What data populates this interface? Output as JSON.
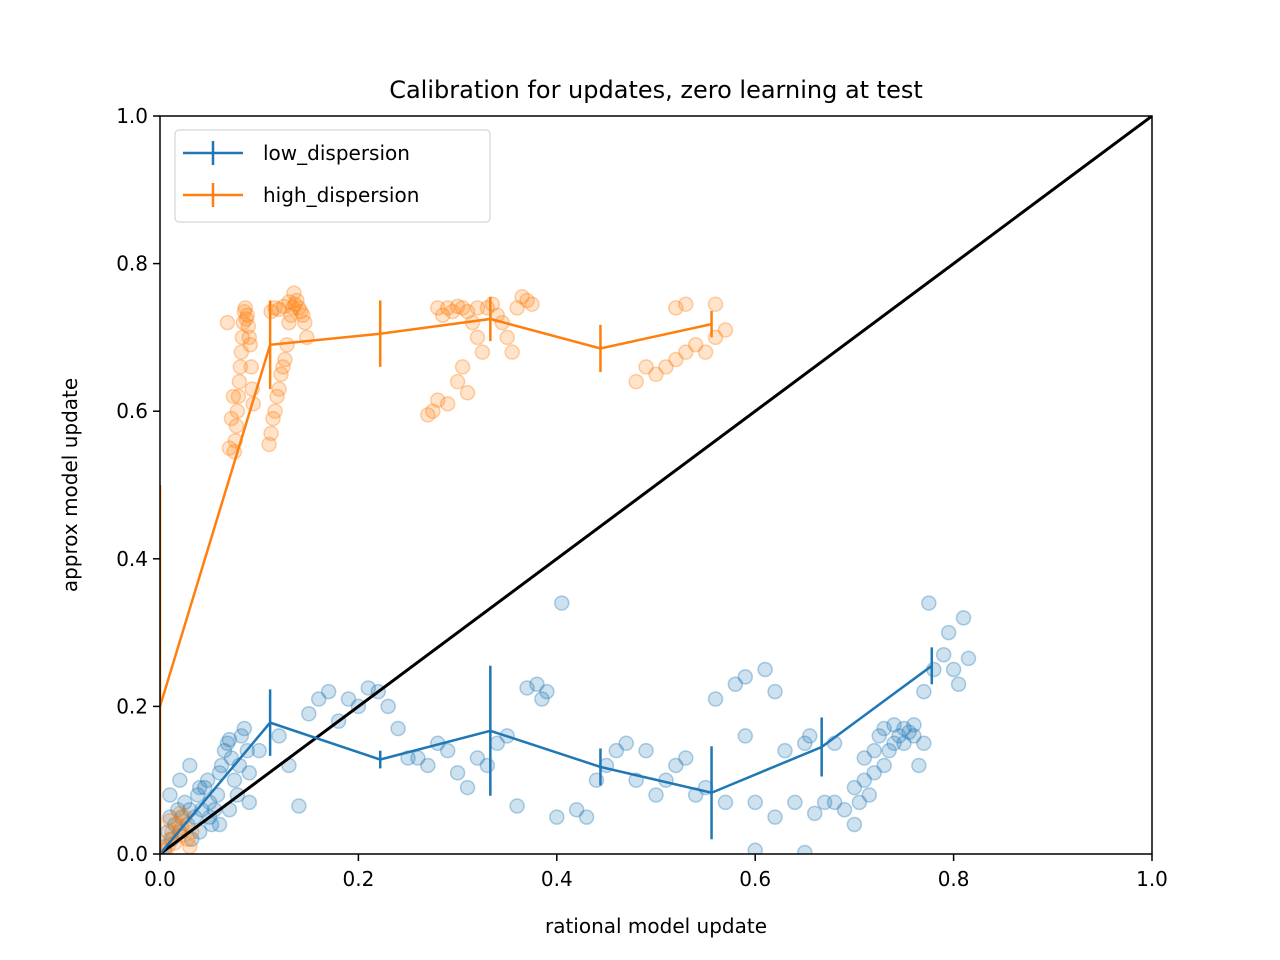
{
  "chart_data": {
    "type": "scatter",
    "title": "Calibration for updates, zero learning at test",
    "xlabel": "rational model update",
    "ylabel": "approx model update",
    "xlim": [
      0.0,
      1.0
    ],
    "ylim": [
      0.0,
      1.0
    ],
    "xticks": [
      "0.0",
      "0.2",
      "0.4",
      "0.6",
      "0.8",
      "1.0"
    ],
    "yticks": [
      "0.0",
      "0.2",
      "0.4",
      "0.6",
      "0.8",
      "1.0"
    ],
    "grid": false,
    "legend_position": "top-left",
    "identity_line": {
      "from": [
        0,
        0
      ],
      "to": [
        1,
        1
      ],
      "color": "#000000"
    },
    "series": [
      {
        "name": "low_dispersion",
        "color": "#1f77b4",
        "binned_mean": {
          "x": [
            0.0,
            0.111,
            0.222,
            0.333,
            0.444,
            0.556,
            0.667,
            0.778
          ],
          "y": [
            0.0,
            0.178,
            0.128,
            0.167,
            0.118,
            0.083,
            0.145,
            0.255
          ],
          "yerr": [
            0.05,
            0.045,
            0.012,
            0.088,
            0.025,
            0.063,
            0.04,
            0.025
          ]
        },
        "points": [
          [
            0.005,
            0.01
          ],
          [
            0.008,
            0.03
          ],
          [
            0.01,
            0.05
          ],
          [
            0.012,
            0.02
          ],
          [
            0.015,
            0.04
          ],
          [
            0.018,
            0.06
          ],
          [
            0.02,
            0.03
          ],
          [
            0.022,
            0.05
          ],
          [
            0.025,
            0.07
          ],
          [
            0.028,
            0.04
          ],
          [
            0.03,
            0.06
          ],
          [
            0.032,
            0.02
          ],
          [
            0.035,
            0.05
          ],
          [
            0.038,
            0.08
          ],
          [
            0.04,
            0.03
          ],
          [
            0.042,
            0.06
          ],
          [
            0.045,
            0.09
          ],
          [
            0.048,
            0.1
          ],
          [
            0.05,
            0.07
          ],
          [
            0.052,
            0.04
          ],
          [
            0.055,
            0.06
          ],
          [
            0.058,
            0.08
          ],
          [
            0.06,
            0.11
          ],
          [
            0.062,
            0.12
          ],
          [
            0.065,
            0.14
          ],
          [
            0.068,
            0.15
          ],
          [
            0.07,
            0.155
          ],
          [
            0.072,
            0.13
          ],
          [
            0.075,
            0.1
          ],
          [
            0.078,
            0.08
          ],
          [
            0.08,
            0.12
          ],
          [
            0.082,
            0.16
          ],
          [
            0.085,
            0.17
          ],
          [
            0.088,
            0.14
          ],
          [
            0.09,
            0.11
          ],
          [
            0.01,
            0.08
          ],
          [
            0.02,
            0.1
          ],
          [
            0.03,
            0.12
          ],
          [
            0.04,
            0.09
          ],
          [
            0.05,
            0.05
          ],
          [
            0.06,
            0.04
          ],
          [
            0.07,
            0.06
          ],
          [
            0.09,
            0.07
          ],
          [
            0.1,
            0.14
          ],
          [
            0.12,
            0.16
          ],
          [
            0.13,
            0.12
          ],
          [
            0.14,
            0.065
          ],
          [
            0.15,
            0.19
          ],
          [
            0.16,
            0.21
          ],
          [
            0.17,
            0.22
          ],
          [
            0.18,
            0.18
          ],
          [
            0.19,
            0.21
          ],
          [
            0.2,
            0.2
          ],
          [
            0.21,
            0.225
          ],
          [
            0.22,
            0.22
          ],
          [
            0.23,
            0.2
          ],
          [
            0.24,
            0.17
          ],
          [
            0.25,
            0.13
          ],
          [
            0.26,
            0.13
          ],
          [
            0.27,
            0.12
          ],
          [
            0.28,
            0.15
          ],
          [
            0.29,
            0.14
          ],
          [
            0.3,
            0.11
          ],
          [
            0.31,
            0.09
          ],
          [
            0.32,
            0.13
          ],
          [
            0.33,
            0.12
          ],
          [
            0.34,
            0.15
          ],
          [
            0.35,
            0.16
          ],
          [
            0.36,
            0.065
          ],
          [
            0.37,
            0.225
          ],
          [
            0.38,
            0.23
          ],
          [
            0.385,
            0.21
          ],
          [
            0.39,
            0.22
          ],
          [
            0.4,
            0.05
          ],
          [
            0.405,
            0.34
          ],
          [
            0.42,
            0.06
          ],
          [
            0.43,
            0.05
          ],
          [
            0.44,
            0.1
          ],
          [
            0.45,
            0.12
          ],
          [
            0.46,
            0.14
          ],
          [
            0.47,
            0.15
          ],
          [
            0.48,
            0.1
          ],
          [
            0.49,
            0.14
          ],
          [
            0.5,
            0.08
          ],
          [
            0.51,
            0.1
          ],
          [
            0.52,
            0.12
          ],
          [
            0.53,
            0.13
          ],
          [
            0.54,
            0.08
          ],
          [
            0.55,
            0.09
          ],
          [
            0.56,
            0.21
          ],
          [
            0.57,
            0.07
          ],
          [
            0.58,
            0.23
          ],
          [
            0.59,
            0.24
          ],
          [
            0.6,
            0.07
          ],
          [
            0.61,
            0.25
          ],
          [
            0.62,
            0.22
          ],
          [
            0.63,
            0.14
          ],
          [
            0.64,
            0.07
          ],
          [
            0.65,
            0.15
          ],
          [
            0.655,
            0.16
          ],
          [
            0.66,
            0.055
          ],
          [
            0.67,
            0.07
          ],
          [
            0.68,
            0.07
          ],
          [
            0.69,
            0.06
          ],
          [
            0.7,
            0.04
          ],
          [
            0.71,
            0.1
          ],
          [
            0.72,
            0.11
          ],
          [
            0.73,
            0.12
          ],
          [
            0.735,
            0.14
          ],
          [
            0.74,
            0.15
          ],
          [
            0.745,
            0.16
          ],
          [
            0.75,
            0.17
          ],
          [
            0.755,
            0.165
          ],
          [
            0.76,
            0.175
          ],
          [
            0.765,
            0.12
          ],
          [
            0.77,
            0.22
          ],
          [
            0.775,
            0.34
          ],
          [
            0.78,
            0.25
          ],
          [
            0.79,
            0.27
          ],
          [
            0.795,
            0.3
          ],
          [
            0.8,
            0.25
          ],
          [
            0.805,
            0.23
          ],
          [
            0.81,
            0.32
          ],
          [
            0.815,
            0.265
          ],
          [
            0.71,
            0.13
          ],
          [
            0.72,
            0.14
          ],
          [
            0.725,
            0.16
          ],
          [
            0.73,
            0.17
          ],
          [
            0.74,
            0.175
          ],
          [
            0.75,
            0.15
          ],
          [
            0.76,
            0.16
          ],
          [
            0.77,
            0.15
          ],
          [
            0.7,
            0.09
          ],
          [
            0.705,
            0.07
          ],
          [
            0.715,
            0.08
          ],
          [
            0.6,
            0.005
          ],
          [
            0.65,
            0.002
          ],
          [
            0.59,
            0.16
          ],
          [
            0.62,
            0.05
          ],
          [
            0.68,
            0.15
          ]
        ]
      },
      {
        "name": "high_dispersion",
        "color": "#ff7f0e",
        "binned_mean": {
          "x": [
            0.0,
            0.111,
            0.222,
            0.333,
            0.444,
            0.556
          ],
          "y": [
            0.2,
            0.69,
            0.705,
            0.725,
            0.685,
            0.718
          ],
          "yerr": [
            0.3,
            0.06,
            0.045,
            0.03,
            0.032,
            0.018
          ]
        },
        "points": [
          [
            0.005,
            0.005
          ],
          [
            0.008,
            0.01
          ],
          [
            0.01,
            0.02
          ],
          [
            0.012,
            0.03
          ],
          [
            0.015,
            0.015
          ],
          [
            0.018,
            0.04
          ],
          [
            0.02,
            0.025
          ],
          [
            0.022,
            0.035
          ],
          [
            0.025,
            0.05
          ],
          [
            0.028,
            0.02
          ],
          [
            0.03,
            0.01
          ],
          [
            0.032,
            0.03
          ],
          [
            0.01,
            0.045
          ],
          [
            0.02,
            0.055
          ],
          [
            0.075,
            0.545
          ],
          [
            0.076,
            0.56
          ],
          [
            0.077,
            0.58
          ],
          [
            0.078,
            0.6
          ],
          [
            0.079,
            0.62
          ],
          [
            0.08,
            0.64
          ],
          [
            0.081,
            0.66
          ],
          [
            0.082,
            0.68
          ],
          [
            0.083,
            0.7
          ],
          [
            0.084,
            0.72
          ],
          [
            0.085,
            0.735
          ],
          [
            0.086,
            0.74
          ],
          [
            0.087,
            0.725
          ],
          [
            0.088,
            0.73
          ],
          [
            0.089,
            0.715
          ],
          [
            0.09,
            0.7
          ],
          [
            0.091,
            0.69
          ],
          [
            0.092,
            0.66
          ],
          [
            0.093,
            0.63
          ],
          [
            0.094,
            0.61
          ],
          [
            0.07,
            0.55
          ],
          [
            0.072,
            0.59
          ],
          [
            0.074,
            0.62
          ],
          [
            0.068,
            0.72
          ],
          [
            0.11,
            0.555
          ],
          [
            0.112,
            0.57
          ],
          [
            0.114,
            0.59
          ],
          [
            0.116,
            0.6
          ],
          [
            0.118,
            0.62
          ],
          [
            0.12,
            0.63
          ],
          [
            0.122,
            0.65
          ],
          [
            0.124,
            0.66
          ],
          [
            0.126,
            0.67
          ],
          [
            0.128,
            0.69
          ],
          [
            0.13,
            0.72
          ],
          [
            0.132,
            0.73
          ],
          [
            0.134,
            0.74
          ],
          [
            0.136,
            0.745
          ],
          [
            0.138,
            0.75
          ],
          [
            0.14,
            0.74
          ],
          [
            0.142,
            0.735
          ],
          [
            0.144,
            0.73
          ],
          [
            0.146,
            0.72
          ],
          [
            0.148,
            0.7
          ],
          [
            0.112,
            0.735
          ],
          [
            0.116,
            0.74
          ],
          [
            0.12,
            0.738
          ],
          [
            0.125,
            0.742
          ],
          [
            0.13,
            0.748
          ],
          [
            0.135,
            0.76
          ],
          [
            0.27,
            0.595
          ],
          [
            0.275,
            0.6
          ],
          [
            0.28,
            0.615
          ],
          [
            0.285,
            0.73
          ],
          [
            0.29,
            0.74
          ],
          [
            0.295,
            0.735
          ],
          [
            0.3,
            0.742
          ],
          [
            0.305,
            0.74
          ],
          [
            0.31,
            0.735
          ],
          [
            0.315,
            0.72
          ],
          [
            0.32,
            0.7
          ],
          [
            0.325,
            0.68
          ],
          [
            0.3,
            0.64
          ],
          [
            0.305,
            0.66
          ],
          [
            0.31,
            0.625
          ],
          [
            0.29,
            0.61
          ],
          [
            0.33,
            0.74
          ],
          [
            0.335,
            0.745
          ],
          [
            0.34,
            0.73
          ],
          [
            0.345,
            0.72
          ],
          [
            0.35,
            0.7
          ],
          [
            0.355,
            0.68
          ],
          [
            0.36,
            0.74
          ],
          [
            0.365,
            0.755
          ],
          [
            0.37,
            0.75
          ],
          [
            0.375,
            0.745
          ],
          [
            0.5,
            0.65
          ],
          [
            0.51,
            0.66
          ],
          [
            0.52,
            0.67
          ],
          [
            0.53,
            0.68
          ],
          [
            0.54,
            0.69
          ],
          [
            0.55,
            0.68
          ],
          [
            0.56,
            0.7
          ],
          [
            0.57,
            0.71
          ],
          [
            0.48,
            0.64
          ],
          [
            0.49,
            0.66
          ],
          [
            0.52,
            0.74
          ],
          [
            0.53,
            0.745
          ],
          [
            0.56,
            0.745
          ],
          [
            0.28,
            0.74
          ],
          [
            0.32,
            0.74
          ]
        ]
      }
    ]
  }
}
